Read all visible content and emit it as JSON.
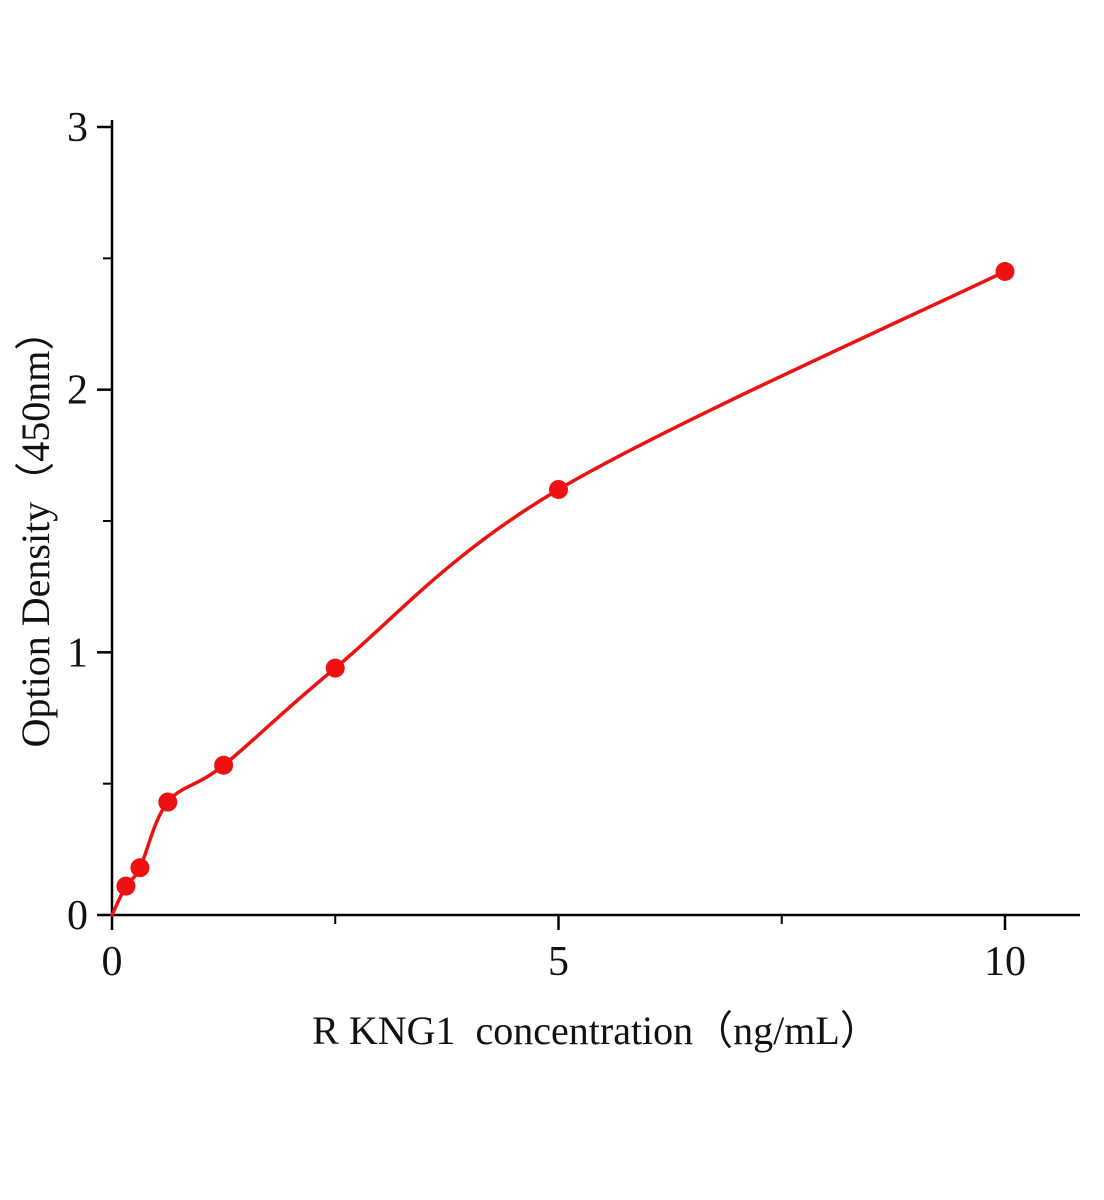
{
  "page": {
    "background": "#ffffff"
  },
  "chart_data": {
    "type": "scatter",
    "title": "",
    "xlabel": "R KNG1  concentration（ng/mL）",
    "ylabel": "Option Density（450nm）",
    "x": [
      0.156,
      0.313,
      0.625,
      1.25,
      2.5,
      5,
      10
    ],
    "y": [
      0.11,
      0.18,
      0.43,
      0.57,
      0.94,
      1.62,
      2.45
    ],
    "curve_through_origin": true,
    "xlim": [
      0,
      10.8
    ],
    "ylim": [
      0,
      3
    ],
    "x_major_ticks": [
      0,
      5,
      10
    ],
    "x_minor_ticks": [
      2.5,
      7.5
    ],
    "y_major_ticks": [
      0,
      1,
      2,
      3
    ],
    "y_minor_ticks": [
      0.5,
      1.5,
      2.5
    ],
    "grid": false,
    "legend": false,
    "series_color": "#ee1111",
    "axis_color": "#000000",
    "marker": "circle",
    "marker_radius": 9.5,
    "line_width": 3.5
  }
}
